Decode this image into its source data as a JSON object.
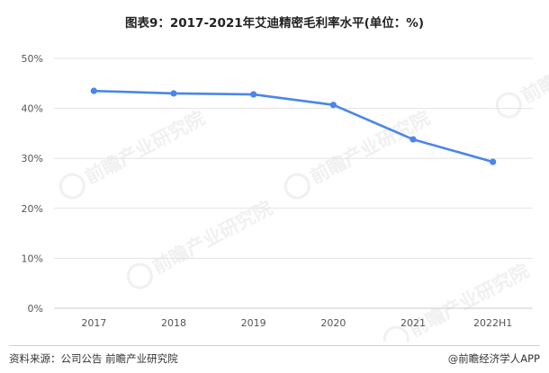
{
  "title": "图表9：2017-2021年艾迪精密毛利率水平(单位：%)",
  "source": "资料来源：公司公告 前瞻产业研究院",
  "brand": "@前瞻经济学人APP",
  "watermark": "前瞻产业研究院",
  "colors": {
    "line": "#4a86e8",
    "grid": "#e3e3e3",
    "axis": "#cccccc",
    "tick": "#555555"
  },
  "chart_data": {
    "type": "line",
    "categories": [
      "2017",
      "2018",
      "2019",
      "2020",
      "2021",
      "2022H1"
    ],
    "series": [
      {
        "values": [
          43.5,
          43.0,
          42.8,
          40.7,
          33.8,
          29.3
        ]
      }
    ],
    "yticks": [
      "0%",
      "10%",
      "20%",
      "30%",
      "40%",
      "50%"
    ],
    "ylim": [
      0,
      50
    ],
    "grid": true,
    "legend": "none"
  }
}
